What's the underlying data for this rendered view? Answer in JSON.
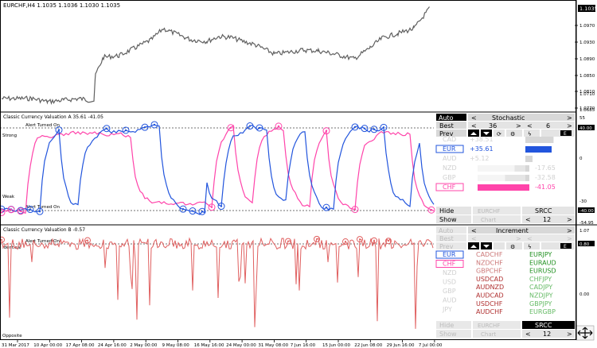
{
  "main": {
    "symbol_label": "EURCHF,H4  1.1035  1.1036  1.1030  1.1035",
    "price_ticks": [
      "1.0970",
      "1.0930",
      "1.0890",
      "1.0850",
      "1.0810",
      "1.0770",
      "1.0710",
      "1.0685"
    ],
    "price_tag": "1.1035",
    "colors": {
      "price": "#606060",
      "tag_bg": "#000000",
      "tag_fg": "#ffffff"
    }
  },
  "panel_a": {
    "title": "Classic Currency Valuation A 35.61 -41.05",
    "alert_top": "Alert Turned On",
    "alert_bottom": "Alert Turned On",
    "label_strong": "Strong",
    "label_weak": "Weak",
    "scale_ticks": [
      "55",
      "40.00",
      "0",
      "-30",
      "-40.00",
      "-54.95"
    ],
    "controls": {
      "auto": "Auto",
      "mode": "Stochastic",
      "best_label": "Best",
      "best_value": "36",
      "best_value2": "6",
      "prev_label": "Prev",
      "hide": "Hide",
      "show": "Show",
      "pair": "EURCHF",
      "src": "SRCC",
      "chart_label": "Chart",
      "chart_value": "12"
    },
    "strength": [
      {
        "ccy": "CAD",
        "value": "+38.51"
      },
      {
        "ccy": "EUR",
        "value": "+35.61"
      },
      {
        "ccy": "AUD",
        "value": "+5.12"
      },
      {
        "ccy": "NZD",
        "value": "-17.65"
      },
      {
        "ccy": "GBP",
        "value": "-32.58"
      },
      {
        "ccy": "CHF",
        "value": "-41.05"
      }
    ],
    "colors": {
      "eur": "#2255dd",
      "chf": "#ff44aa"
    }
  },
  "panel_b": {
    "title": "Classic Currency Valuation B -0.57",
    "alert": "Alert Turned On",
    "label_identical": "Identical",
    "label_opposite": "Opposite",
    "scale_ticks": [
      "1.07",
      "0.80",
      "0.00"
    ],
    "controls": {
      "auto": "Auto",
      "mode": "Increment",
      "best_label": "Best",
      "prev_label": "Prev",
      "hide": "Hide",
      "show": "Show",
      "pair": "EURCHF",
      "src": "SRCC",
      "chart_label": "Chart",
      "chart_value": "12"
    },
    "currencies": [
      "EUR",
      "CHF",
      "NZD",
      "USD",
      "GBP",
      "AUD",
      "JPY"
    ],
    "pairs_red": [
      "CADCHF",
      "NZDCHF",
      "GBPCHF",
      "USDCAD",
      "AUDNZD",
      "AUDCAD",
      "USDCHF",
      "AUDCHF"
    ],
    "pairs_green": [
      "EURJPY",
      "EURAUD",
      "EURUSD",
      "CHFJPY",
      "CADJPY",
      "NZDJPY",
      "GBPJPY",
      "EURGBP"
    ],
    "colors": {
      "line": "#e06060",
      "red": "#c04040",
      "green": "#209020"
    }
  },
  "time_axis": [
    "31 Mar 2017",
    "10 Apr 00:00",
    "17 Apr 08:00",
    "24 Apr 16:00",
    "2 May 00:00",
    "9 May 08:00",
    "16 May 16:00",
    "24 May 00:00",
    "31 May 08:00",
    "7 Jun 16:00",
    "15 Jun 00:00",
    "22 Jun 08:00",
    "29 Jun 16:00",
    "7 Jul 00:00"
  ]
}
